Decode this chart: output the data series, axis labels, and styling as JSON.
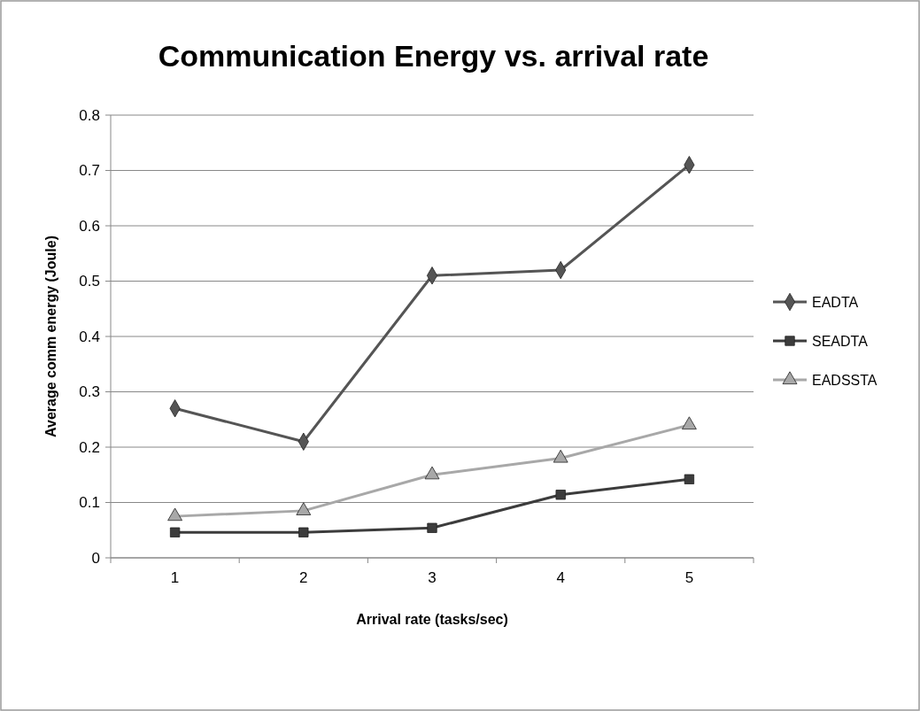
{
  "chart_data": {
    "type": "line",
    "title": "Communication Energy vs. arrival rate",
    "xlabel": "Arrival rate (tasks/sec)",
    "ylabel": "Average comm energy (Joule)",
    "categories": [
      "1",
      "2",
      "3",
      "4",
      "5"
    ],
    "series": [
      {
        "name": "EADTA",
        "color": "#555555",
        "marker": "diamond",
        "values": [
          0.27,
          0.21,
          0.51,
          0.52,
          0.71
        ]
      },
      {
        "name": "SEADTA",
        "color": "#3c3c3c",
        "marker": "square",
        "values": [
          0.046,
          0.046,
          0.054,
          0.114,
          0.142
        ]
      },
      {
        "name": "EADSSTA",
        "color": "#a8a8a8",
        "marker": "triangle",
        "values": [
          0.075,
          0.085,
          0.15,
          0.18,
          0.24
        ]
      }
    ],
    "ylim": [
      0,
      0.8
    ],
    "yticks": [
      0,
      0.1,
      0.2,
      0.3,
      0.4,
      0.5,
      0.6,
      0.7,
      0.8
    ],
    "grid": "y",
    "legend": "right",
    "line_style": "solid"
  }
}
